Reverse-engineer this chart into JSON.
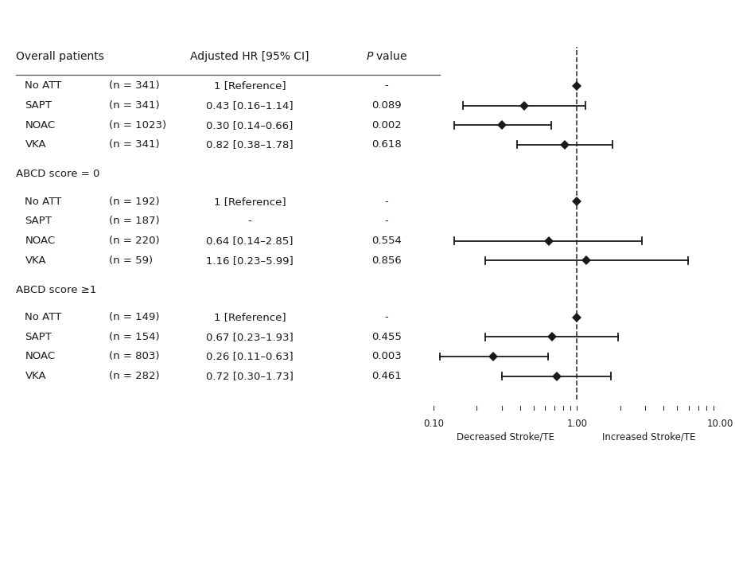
{
  "col_header_left": "Overall patients",
  "col_header_mid": "Adjusted HR [95% CI]",
  "col_header_pval": "P value",
  "sections": [
    {
      "section_label": null,
      "rows": [
        {
          "label": "No ATT",
          "n": "n = 341",
          "hr_text": "1 [Reference]",
          "pval_text": "-",
          "hr": 1.0,
          "lo": null,
          "hi": null,
          "is_ref": true
        },
        {
          "label": "SAPT",
          "n": "n = 341",
          "hr_text": "0.43 [0.16–1.14]",
          "pval_text": "0.089",
          "hr": 0.43,
          "lo": 0.16,
          "hi": 1.14,
          "is_ref": false
        },
        {
          "label": "NOAC",
          "n": "n = 1023",
          "hr_text": "0.30 [0.14–0.66]",
          "pval_text": "0.002",
          "hr": 0.3,
          "lo": 0.14,
          "hi": 0.66,
          "is_ref": false
        },
        {
          "label": "VKA",
          "n": "n = 341",
          "hr_text": "0.82 [0.38–1.78]",
          "pval_text": "0.618",
          "hr": 0.82,
          "lo": 0.38,
          "hi": 1.78,
          "is_ref": false
        }
      ]
    },
    {
      "section_label": "ABCD score = 0",
      "rows": [
        {
          "label": "No ATT",
          "n": "n = 192",
          "hr_text": "1 [Reference]",
          "pval_text": "-",
          "hr": 1.0,
          "lo": null,
          "hi": null,
          "is_ref": true
        },
        {
          "label": "SAPT",
          "n": "n = 187",
          "hr_text": "-",
          "pval_text": "-",
          "hr": null,
          "lo": null,
          "hi": null,
          "is_ref": false
        },
        {
          "label": "NOAC",
          "n": "n = 220",
          "hr_text": "0.64 [0.14–2.85]",
          "pval_text": "0.554",
          "hr": 0.64,
          "lo": 0.14,
          "hi": 2.85,
          "is_ref": false
        },
        {
          "label": "VKA",
          "n": "n = 59",
          "hr_text": "1.16 [0.23–5.99]",
          "pval_text": "0.856",
          "hr": 1.16,
          "lo": 0.23,
          "hi": 5.99,
          "is_ref": false
        }
      ]
    },
    {
      "section_label": "ABCD score ≥1",
      "rows": [
        {
          "label": "No ATT",
          "n": "n = 149",
          "hr_text": "1 [Reference]",
          "pval_text": "-",
          "hr": 1.0,
          "lo": null,
          "hi": null,
          "is_ref": true
        },
        {
          "label": "SAPT",
          "n": "n = 154",
          "hr_text": "0.67 [0.23–1.93]",
          "pval_text": "0.455",
          "hr": 0.67,
          "lo": 0.23,
          "hi": 1.93,
          "is_ref": false
        },
        {
          "label": "NOAC",
          "n": "n = 803",
          "hr_text": "0.26 [0.11–0.63]",
          "pval_text": "0.003",
          "hr": 0.26,
          "lo": 0.11,
          "hi": 0.63,
          "is_ref": false
        },
        {
          "label": "VKA",
          "n": "n = 282",
          "hr_text": "0.72 [0.30–1.73]",
          "pval_text": "0.461",
          "hr": 0.72,
          "lo": 0.3,
          "hi": 1.73,
          "is_ref": false
        }
      ]
    }
  ],
  "xmin": 0.1,
  "xmax": 10.0,
  "xlabel_left": "Decreased Stroke/TE",
  "xlabel_right": "Increased Stroke/TE",
  "plot_bg": "#ffffff",
  "diamond_color": "#1a1a1a",
  "line_color": "#1a1a1a",
  "text_color": "#1a1a1a",
  "header_fontsize": 10,
  "label_fontsize": 9.5,
  "section_fontsize": 9.5
}
